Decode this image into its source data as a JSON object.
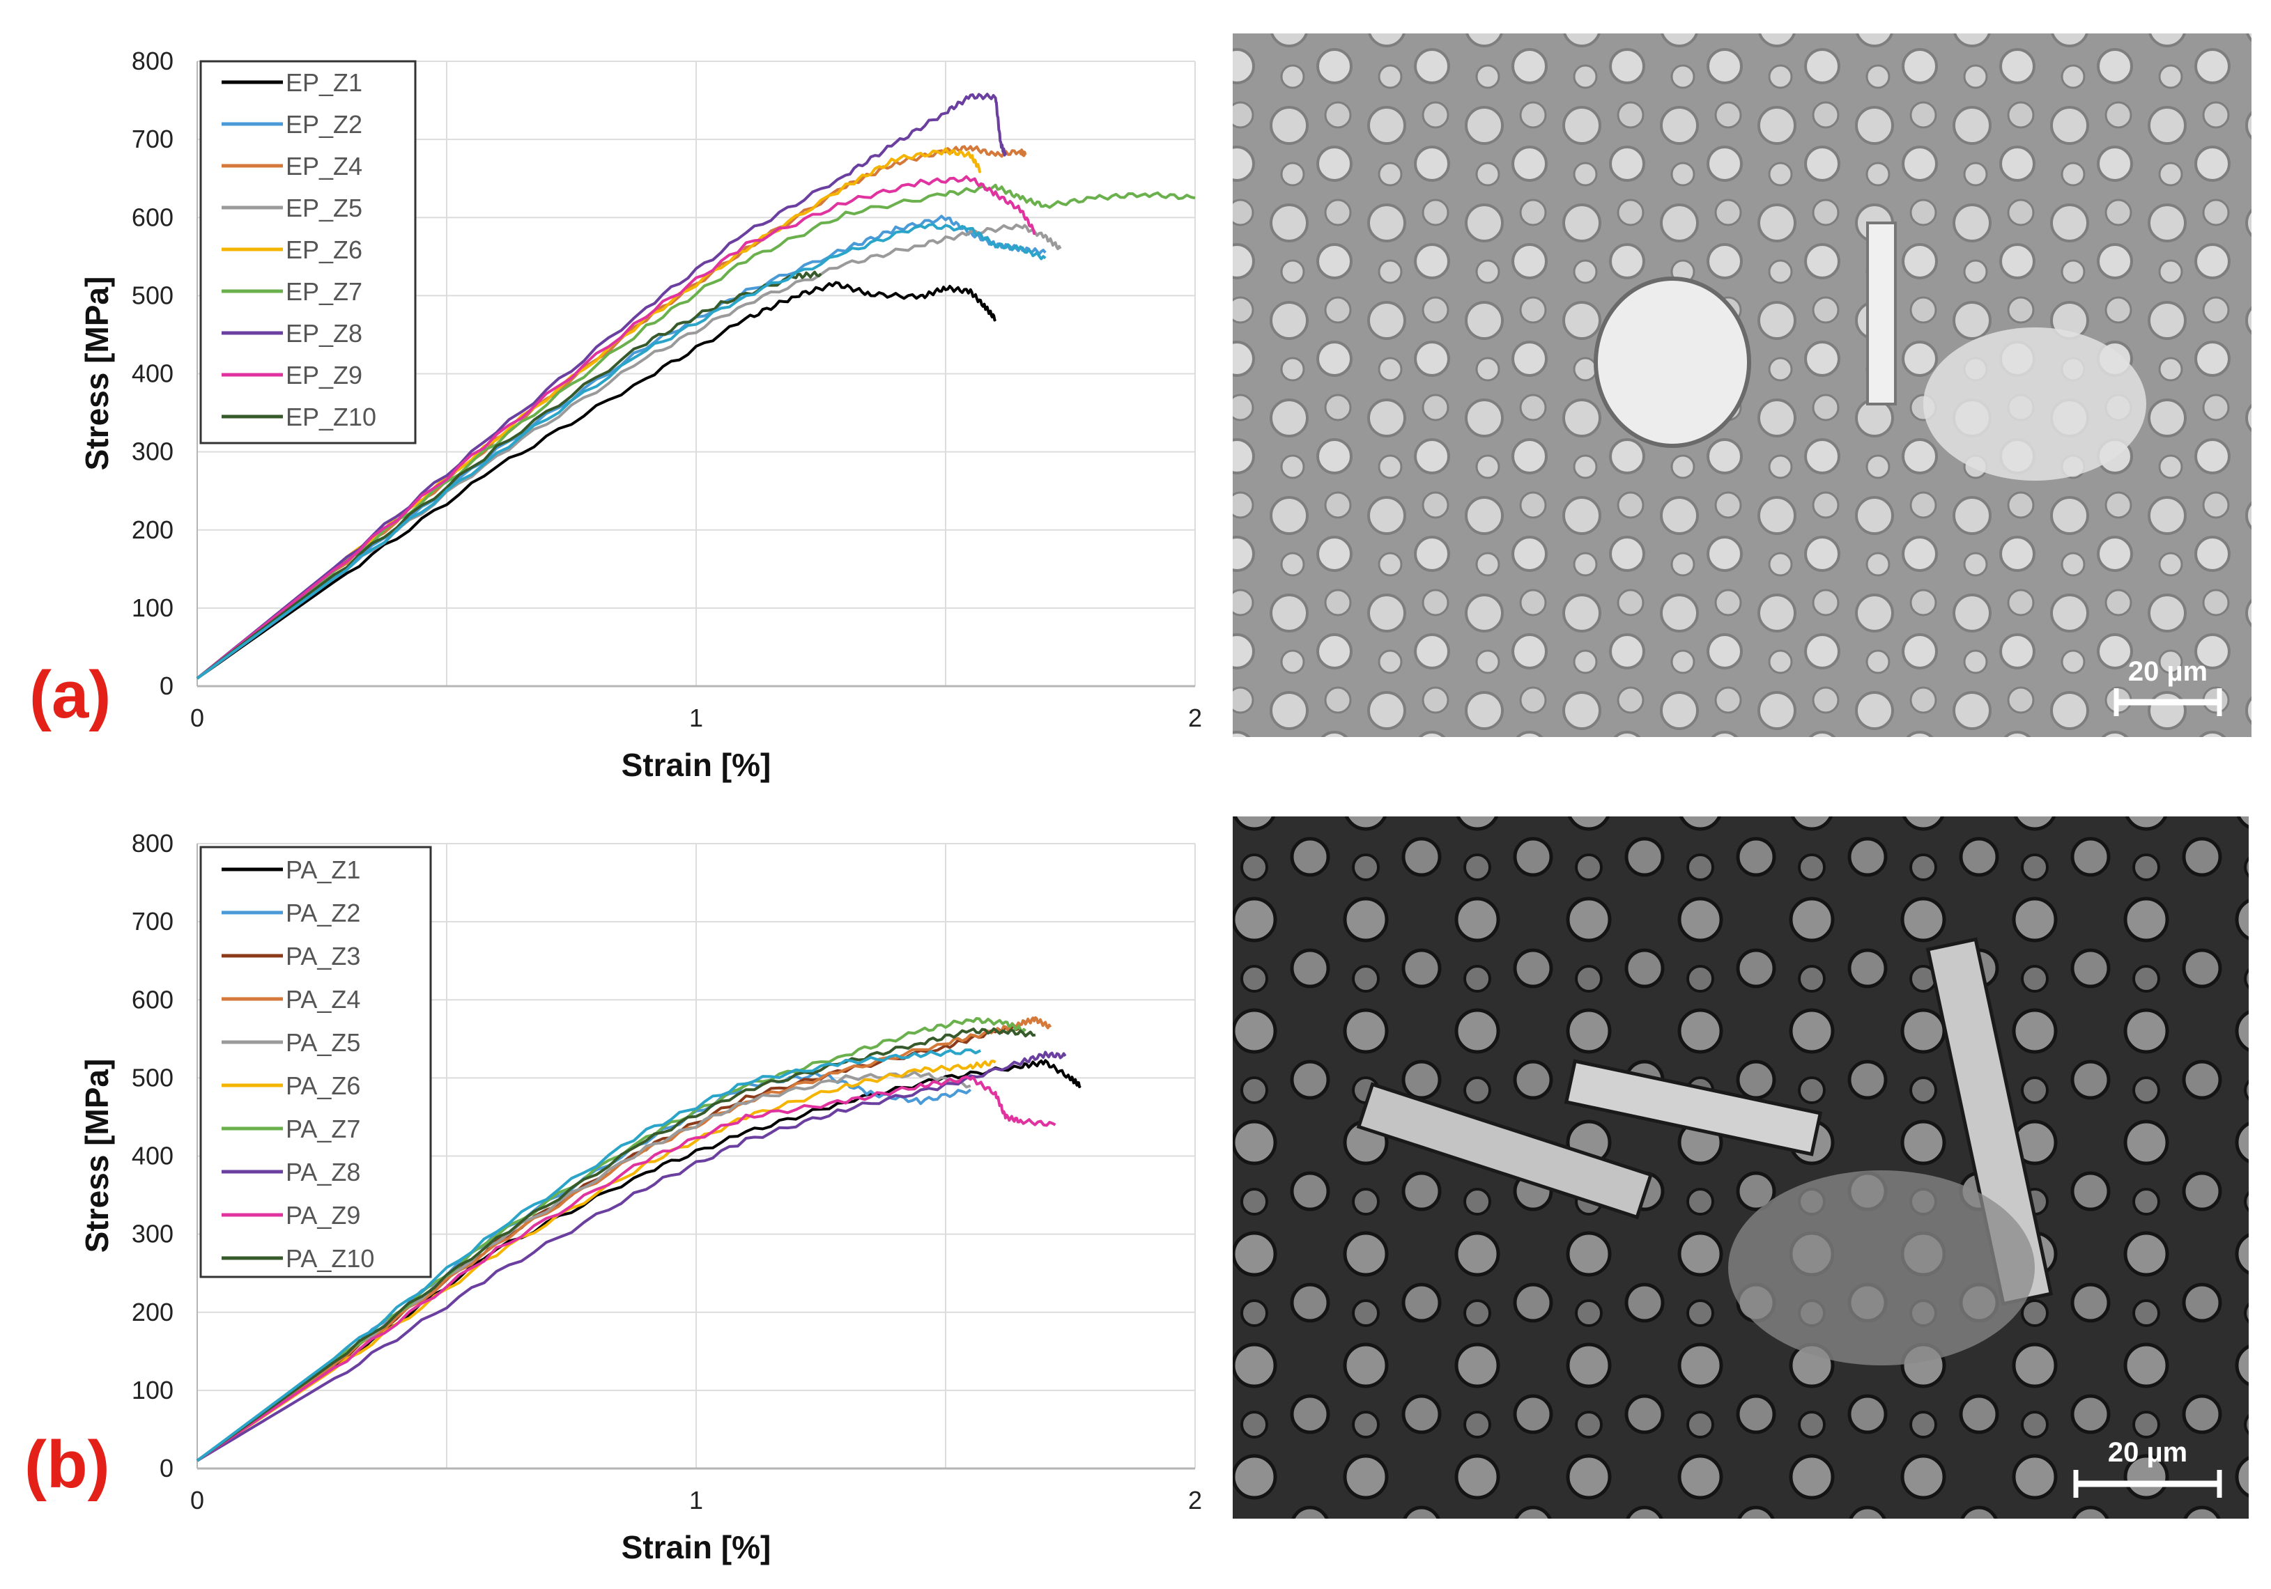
{
  "panels": [
    {
      "label": "(a)",
      "scale_bar_label": "20 µm",
      "sem_tone": "light"
    },
    {
      "label": "(b)",
      "scale_bar_label": "20 µm",
      "sem_tone": "dark"
    }
  ],
  "chart_data": [
    {
      "type": "line",
      "title": "",
      "xlabel": "Strain [%]",
      "ylabel": "Stress [MPa]",
      "xlim": [
        0,
        2
      ],
      "ylim": [
        0,
        800
      ],
      "xticks": [
        "0",
        "1",
        "2"
      ],
      "yticks": [
        "0",
        "100",
        "200",
        "300",
        "400",
        "500",
        "600",
        "700",
        "800"
      ],
      "grid": "vertical",
      "legend_position": "top-left",
      "series": [
        {
          "name": "EP_Z1",
          "color": "#000000",
          "points": [
            [
              0,
              10
            ],
            [
              0.3,
              145
            ],
            [
              0.6,
              280
            ],
            [
              0.9,
              395
            ],
            [
              1.1,
              470
            ],
            [
              1.2,
              500
            ],
            [
              1.28,
              515
            ],
            [
              1.35,
              502
            ],
            [
              1.45,
              498
            ],
            [
              1.5,
              510
            ],
            [
              1.55,
              505
            ],
            [
              1.58,
              485
            ],
            [
              1.6,
              470
            ]
          ]
        },
        {
          "name": "EP_Z2",
          "color": "#4a9ad8",
          "points": [
            [
              0,
              10
            ],
            [
              0.3,
              152
            ],
            [
              0.6,
              302
            ],
            [
              0.9,
              435
            ],
            [
              1.1,
              505
            ],
            [
              1.3,
              560
            ],
            [
              1.4,
              585
            ],
            [
              1.5,
              600
            ],
            [
              1.55,
              580
            ],
            [
              1.6,
              565
            ],
            [
              1.65,
              560
            ],
            [
              1.7,
              555
            ]
          ]
        },
        {
          "name": "EP_Z4",
          "color": "#d5793a",
          "points": [
            [
              0,
              10
            ],
            [
              0.3,
              160
            ],
            [
              0.6,
              315
            ],
            [
              0.9,
              470
            ],
            [
              1.1,
              560
            ],
            [
              1.3,
              640
            ],
            [
              1.4,
              670
            ],
            [
              1.5,
              685
            ],
            [
              1.55,
              690
            ],
            [
              1.6,
              680
            ],
            [
              1.65,
              685
            ],
            [
              1.66,
              680
            ]
          ]
        },
        {
          "name": "EP_Z5",
          "color": "#9a9a9a",
          "points": [
            [
              0,
              10
            ],
            [
              0.3,
              150
            ],
            [
              0.6,
              295
            ],
            [
              0.9,
              420
            ],
            [
              1.1,
              490
            ],
            [
              1.3,
              540
            ],
            [
              1.45,
              565
            ],
            [
              1.55,
              580
            ],
            [
              1.65,
              590
            ],
            [
              1.7,
              575
            ],
            [
              1.73,
              560
            ]
          ]
        },
        {
          "name": "EP_Z6",
          "color": "#f5b400",
          "points": [
            [
              0,
              10
            ],
            [
              0.3,
              163
            ],
            [
              0.6,
              318
            ],
            [
              0.9,
              470
            ],
            [
              1.1,
              560
            ],
            [
              1.3,
              640
            ],
            [
              1.4,
              675
            ],
            [
              1.5,
              685
            ],
            [
              1.55,
              680
            ],
            [
              1.57,
              660
            ]
          ]
        },
        {
          "name": "EP_Z7",
          "color": "#6ab04c",
          "points": [
            [
              0,
              10
            ],
            [
              0.3,
              160
            ],
            [
              0.6,
              312
            ],
            [
              0.9,
              460
            ],
            [
              1.1,
              545
            ],
            [
              1.3,
              605
            ],
            [
              1.5,
              630
            ],
            [
              1.6,
              640
            ],
            [
              1.65,
              625
            ],
            [
              1.7,
              615
            ],
            [
              1.8,
              625
            ],
            [
              1.9,
              630
            ],
            [
              2.0,
              625
            ]
          ]
        },
        {
          "name": "EP_Z8",
          "color": "#6a3fa0",
          "points": [
            [
              0,
              10
            ],
            [
              0.3,
              165
            ],
            [
              0.6,
              325
            ],
            [
              0.9,
              485
            ],
            [
              1.1,
              580
            ],
            [
              1.3,
              655
            ],
            [
              1.4,
              695
            ],
            [
              1.5,
              735
            ],
            [
              1.55,
              755
            ],
            [
              1.6,
              755
            ],
            [
              1.61,
              695
            ],
            [
              1.62,
              680
            ]
          ]
        },
        {
          "name": "EP_Z9",
          "color": "#e0339f",
          "points": [
            [
              0,
              10
            ],
            [
              0.3,
              162
            ],
            [
              0.6,
              320
            ],
            [
              0.9,
              475
            ],
            [
              1.1,
              565
            ],
            [
              1.3,
              620
            ],
            [
              1.45,
              645
            ],
            [
              1.55,
              650
            ],
            [
              1.6,
              630
            ],
            [
              1.65,
              610
            ],
            [
              1.68,
              580
            ]
          ]
        },
        {
          "name": "EP_Z10",
          "color": "#375a2b",
          "points": [
            [
              0,
              10
            ],
            [
              0.3,
              155
            ],
            [
              0.6,
              305
            ],
            [
              0.9,
              440
            ],
            [
              1.05,
              490
            ],
            [
              1.2,
              525
            ],
            [
              1.25,
              528
            ]
          ]
        },
        {
          "name": "",
          "color": "#2aa4c8",
          "points": [
            [
              0,
              10
            ],
            [
              0.3,
              150
            ],
            [
              0.6,
              298
            ],
            [
              0.9,
              430
            ],
            [
              1.1,
              500
            ],
            [
              1.3,
              555
            ],
            [
              1.45,
              590
            ],
            [
              1.55,
              585
            ],
            [
              1.6,
              565
            ],
            [
              1.65,
              560
            ],
            [
              1.7,
              548
            ]
          ]
        }
      ]
    },
    {
      "type": "line",
      "title": "",
      "xlabel": "Strain [%]",
      "ylabel": "Stress [MPa]",
      "xlim": [
        0,
        2
      ],
      "ylim": [
        0,
        800
      ],
      "xticks": [
        "0",
        "1",
        "2"
      ],
      "yticks": [
        "0",
        "100",
        "200",
        "300",
        "400",
        "500",
        "600",
        "700",
        "800"
      ],
      "grid": "vertical",
      "legend_position": "top-left",
      "series": [
        {
          "name": "PA_Z1",
          "color": "#000000",
          "points": [
            [
              0,
              10
            ],
            [
              0.3,
              140
            ],
            [
              0.6,
              280
            ],
            [
              0.9,
              380
            ],
            [
              1.1,
              430
            ],
            [
              1.3,
              470
            ],
            [
              1.5,
              500
            ],
            [
              1.65,
              515
            ],
            [
              1.7,
              520
            ],
            [
              1.75,
              500
            ],
            [
              1.77,
              490
            ]
          ]
        },
        {
          "name": "PA_Z2",
          "color": "#4a9ad8",
          "points": [
            [
              0,
              10
            ],
            [
              0.3,
              150
            ],
            [
              0.6,
              300
            ],
            [
              0.9,
              420
            ],
            [
              1.1,
              490
            ],
            [
              1.25,
              505
            ],
            [
              1.35,
              480
            ],
            [
              1.45,
              470
            ],
            [
              1.55,
              485
            ]
          ]
        },
        {
          "name": "PA_Z3",
          "color": "#8b3a1a",
          "points": [
            [
              0,
              10
            ],
            [
              0.3,
              145
            ],
            [
              0.6,
              290
            ],
            [
              0.9,
              410
            ],
            [
              1.1,
              475
            ],
            [
              1.3,
              510
            ],
            [
              1.5,
              540
            ],
            [
              1.6,
              560
            ],
            [
              1.65,
              565
            ]
          ]
        },
        {
          "name": "PA_Z4",
          "color": "#d5793a",
          "points": [
            [
              0,
              10
            ],
            [
              0.3,
              145
            ],
            [
              0.6,
              288
            ],
            [
              0.9,
              408
            ],
            [
              1.1,
              470
            ],
            [
              1.3,
              510
            ],
            [
              1.5,
              545
            ],
            [
              1.6,
              560
            ],
            [
              1.65,
              570
            ],
            [
              1.68,
              575
            ],
            [
              1.71,
              565
            ]
          ]
        },
        {
          "name": "PA_Z5",
          "color": "#9a9a9a",
          "points": [
            [
              0,
              10
            ],
            [
              0.3,
              148
            ],
            [
              0.6,
              292
            ],
            [
              0.9,
              410
            ],
            [
              1.1,
              470
            ],
            [
              1.3,
              500
            ],
            [
              1.45,
              505
            ],
            [
              1.55,
              490
            ]
          ]
        },
        {
          "name": "PA_Z6",
          "color": "#f5b400",
          "points": [
            [
              0,
              10
            ],
            [
              0.3,
              138
            ],
            [
              0.6,
              275
            ],
            [
              0.9,
              390
            ],
            [
              1.1,
              450
            ],
            [
              1.3,
              490
            ],
            [
              1.45,
              510
            ],
            [
              1.55,
              515
            ],
            [
              1.6,
              520
            ]
          ]
        },
        {
          "name": "PA_Z7",
          "color": "#6ab04c",
          "points": [
            [
              0,
              10
            ],
            [
              0.3,
              150
            ],
            [
              0.6,
              298
            ],
            [
              0.9,
              425
            ],
            [
              1.1,
              490
            ],
            [
              1.3,
              530
            ],
            [
              1.45,
              560
            ],
            [
              1.55,
              575
            ],
            [
              1.62,
              570
            ],
            [
              1.66,
              560
            ]
          ]
        },
        {
          "name": "PA_Z8",
          "color": "#6a3fa0",
          "points": [
            [
              0,
              10
            ],
            [
              0.3,
              125
            ],
            [
              0.6,
              250
            ],
            [
              0.9,
              360
            ],
            [
              1.1,
              420
            ],
            [
              1.3,
              460
            ],
            [
              1.5,
              490
            ],
            [
              1.65,
              520
            ],
            [
              1.7,
              530
            ],
            [
              1.74,
              528
            ]
          ]
        },
        {
          "name": "PA_Z9",
          "color": "#e0339f",
          "points": [
            [
              0,
              10
            ],
            [
              0.3,
              140
            ],
            [
              0.6,
              280
            ],
            [
              0.9,
              395
            ],
            [
              1.1,
              450
            ],
            [
              1.3,
              470
            ],
            [
              1.45,
              490
            ],
            [
              1.55,
              500
            ],
            [
              1.6,
              480
            ],
            [
              1.62,
              450
            ],
            [
              1.65,
              445
            ],
            [
              1.72,
              440
            ]
          ]
        },
        {
          "name": "PA_Z10",
          "color": "#375a2b",
          "points": [
            [
              0,
              10
            ],
            [
              0.3,
              148
            ],
            [
              0.6,
              295
            ],
            [
              0.9,
              420
            ],
            [
              1.1,
              485
            ],
            [
              1.3,
              520
            ],
            [
              1.45,
              545
            ],
            [
              1.55,
              560
            ],
            [
              1.62,
              560
            ],
            [
              1.68,
              555
            ]
          ]
        },
        {
          "name": "",
          "color": "#2aa4c8",
          "points": [
            [
              0,
              10
            ],
            [
              0.3,
              153
            ],
            [
              0.6,
              305
            ],
            [
              0.9,
              432
            ],
            [
              1.1,
              495
            ],
            [
              1.3,
              520
            ],
            [
              1.45,
              530
            ],
            [
              1.57,
              535
            ]
          ]
        }
      ]
    }
  ]
}
